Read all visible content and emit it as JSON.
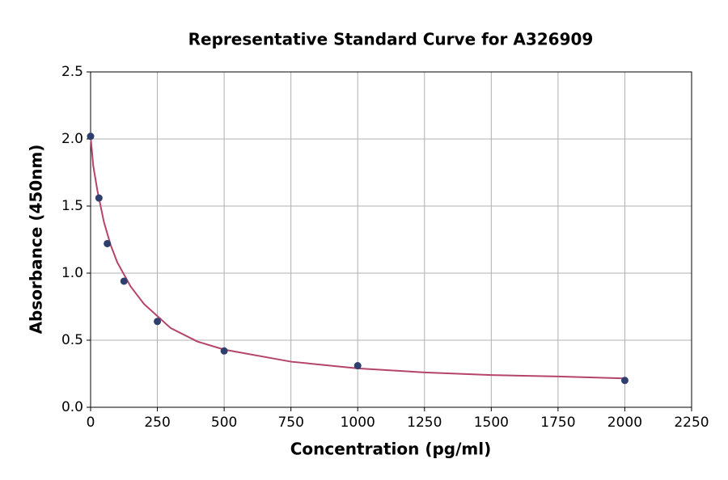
{
  "chart_data": {
    "type": "scatter",
    "title": "Representative Standard Curve for A326909",
    "x_label": "Concentration (pg/ml)",
    "y_label": "Absorbance (450nm)",
    "series": [
      {
        "color": "#2e3f6e",
        "marker": "circle",
        "x": [
          0,
          31.25,
          62.5,
          125,
          250,
          500,
          1000,
          2000
        ],
        "values": [
          2.02,
          1.56,
          1.22,
          0.94,
          0.64,
          0.42,
          0.31,
          0.2
        ]
      },
      {
        "color": "#b5446a",
        "line": "solid",
        "x": [
          0,
          10,
          25,
          50,
          75,
          100,
          150,
          200,
          300,
          400,
          500,
          750,
          1000,
          1250,
          1500,
          1750,
          2000
        ],
        "values": [
          2.02,
          1.8,
          1.62,
          1.38,
          1.21,
          1.08,
          0.9,
          0.77,
          0.59,
          0.49,
          0.43,
          0.34,
          0.29,
          0.26,
          0.24,
          0.23,
          0.215
        ]
      }
    ],
    "xlim": [
      0,
      2250
    ],
    "xticks": [
      0,
      250,
      500,
      750,
      1000,
      1250,
      1500,
      1750,
      2000,
      2250
    ],
    "ylim": [
      0,
      2.5
    ],
    "yticks": [
      {
        "value": 0,
        "label": "0.0"
      },
      0.5,
      {
        "value": 1,
        "label": "1.0"
      },
      1.5,
      {
        "value": 2,
        "label": "2.0"
      },
      2.5
    ],
    "grid": true
  }
}
